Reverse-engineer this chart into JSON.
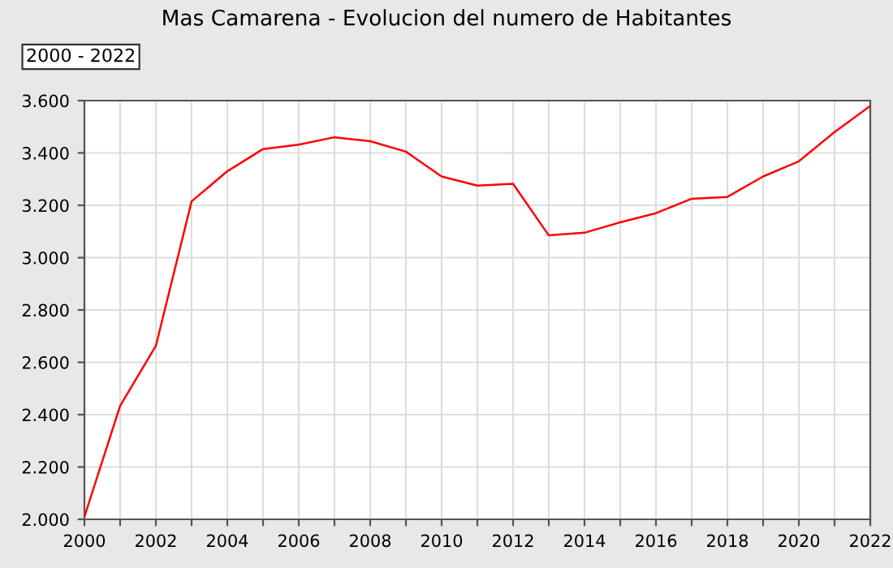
{
  "chart_data": {
    "type": "line",
    "title": "Mas Camarena - Evolucion del numero de Habitantes",
    "annotations": [
      "2000 - 2022"
    ],
    "x": [
      2000,
      2001,
      2002,
      2003,
      2004,
      2005,
      2006,
      2007,
      2008,
      2009,
      2010,
      2011,
      2012,
      2013,
      2014,
      2015,
      2016,
      2017,
      2018,
      2019,
      2020,
      2021,
      2022
    ],
    "series": [
      {
        "color": "#ff0000",
        "values": [
          2010,
          2434,
          2663,
          3215,
          3330,
          3415,
          3432,
          3460,
          3445,
          3405,
          3310,
          3275,
          3282,
          3085,
          3095,
          3135,
          3170,
          3225,
          3232,
          3310,
          3368,
          3480,
          3580
        ]
      }
    ],
    "xlim": [
      2000,
      2022
    ],
    "xticks": [
      2000,
      {
        "value": 2001,
        "label": null
      },
      2002,
      {
        "value": 2003,
        "label": null
      },
      2004,
      {
        "value": 2005,
        "label": null
      },
      2006,
      {
        "value": 2007,
        "label": null
      },
      2008,
      {
        "value": 2009,
        "label": null
      },
      2010,
      {
        "value": 2011,
        "label": null
      },
      2012,
      {
        "value": 2013,
        "label": null
      },
      2014,
      {
        "value": 2015,
        "label": null
      },
      2016,
      {
        "value": 2017,
        "label": null
      },
      2018,
      {
        "value": 2019,
        "label": null
      },
      2020,
      {
        "value": 2021,
        "label": null
      },
      2022
    ],
    "ylim": [
      2000,
      3600
    ],
    "yticks": [
      {
        "value": 2000,
        "label": "2.000"
      },
      {
        "value": 2200,
        "label": "2.200"
      },
      {
        "value": 2400,
        "label": "2.400"
      },
      {
        "value": 2600,
        "label": "2.600"
      },
      {
        "value": 2800,
        "label": "2.800"
      },
      {
        "value": 3000,
        "label": "3.000"
      },
      {
        "value": 3200,
        "label": "3.200"
      },
      {
        "value": 3400,
        "label": "3.400"
      },
      {
        "value": 3600,
        "label": "3.600"
      }
    ],
    "grid": true,
    "legend": false,
    "marker": "none",
    "line_style": "solid"
  }
}
